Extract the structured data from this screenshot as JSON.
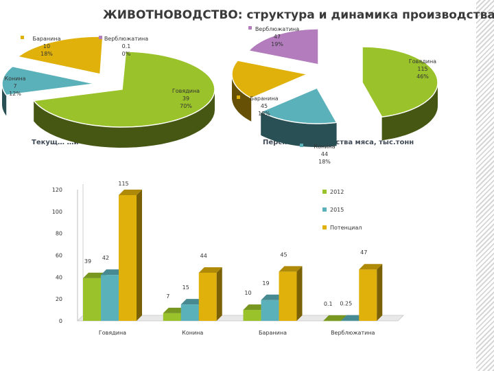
{
  "title": "ЖИВОТНОВОДСТВО: структура и динамика производства",
  "chart_data": [
    {
      "type": "pie",
      "title": "Текущ… …и",
      "slices": [
        {
          "name": "Говядина",
          "value": 39,
          "percent": "70%",
          "color": "#9ac22a"
        },
        {
          "name": "Конина",
          "value": 7,
          "percent": "12%",
          "color": "#5bb1ba"
        },
        {
          "name": "Баранина",
          "value": 10,
          "percent": "18%",
          "color": "#e0b10b"
        },
        {
          "name": "Верблюжатина",
          "value": 0.1,
          "percent": "0%",
          "color": "#b27cbd"
        }
      ]
    },
    {
      "type": "pie",
      "title": "Перспектив… …одства мяса, тыс.тонн",
      "slices": [
        {
          "name": "Говядина",
          "value": 115,
          "percent": "46%",
          "color": "#9ac22a"
        },
        {
          "name": "Конина",
          "value": 44,
          "percent": "18%",
          "color": "#5bb1ba"
        },
        {
          "name": "Баранина",
          "value": 45,
          "percent": "18%",
          "color": "#e0b10b"
        },
        {
          "name": "Верблюжатина",
          "value": 47,
          "percent": "19%",
          "color": "#b27cbd"
        }
      ]
    },
    {
      "type": "bar",
      "categories": [
        "Говядина",
        "Конина",
        "Баранина",
        "Верблюжатина"
      ],
      "series": [
        {
          "name": "2012",
          "values": [
            39,
            7,
            10,
            0.1
          ],
          "labels": [
            "39",
            "7",
            "10",
            "0.1"
          ],
          "color": "#9ac22a"
        },
        {
          "name": "2015",
          "values": [
            42,
            15,
            19,
            0.25
          ],
          "labels": [
            "42",
            "15",
            "19",
            "0.25"
          ],
          "color": "#5bb1ba"
        },
        {
          "name": "Потенциал",
          "values": [
            115,
            44,
            45,
            47
          ],
          "labels": [
            "115",
            "44",
            "45",
            "47"
          ],
          "color": "#e0b10b"
        }
      ],
      "yticks": [
        "0",
        "20",
        "40",
        "60",
        "80",
        "100",
        "120"
      ],
      "ylim": [
        0,
        120
      ],
      "legend": "right",
      "grid": false
    }
  ]
}
